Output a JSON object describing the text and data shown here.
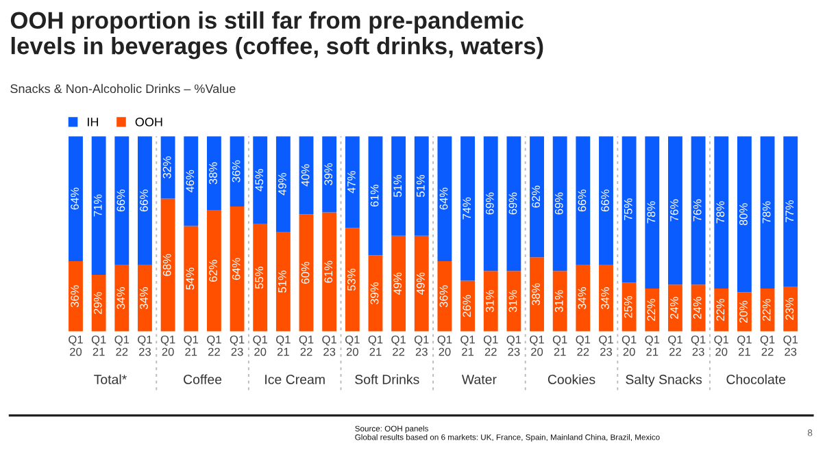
{
  "chart_data": {
    "type": "bar",
    "stacked": true,
    "legend": "top left",
    "grid": false,
    "tick_labels": "x",
    "title": "OOH proportion is still far from pre-pandemic\nlevels in beverages (coffee, soft drinks, waters)",
    "subtitle": "Snacks & Non-Alcoholic Drinks – %Value",
    "categories": [
      "Q1\n20",
      "Q1\n21",
      "Q1\n22",
      "Q1\n23",
      "Q1\n20",
      "Q1\n21",
      "Q1\n22",
      "Q1\n23",
      "Q1\n20",
      "Q1\n21",
      "Q1\n22",
      "Q1\n23",
      "Q1\n20",
      "Q1\n21",
      "Q1\n22",
      "Q1\n23",
      "Q1\n20",
      "Q1\n21",
      "Q1\n22",
      "Q1\n23",
      "Q1\n20",
      "Q1\n21",
      "Q1\n22",
      "Q1\n23",
      "Q1\n20",
      "Q1\n21",
      "Q1\n22",
      "Q1\n23",
      "Q1\n20",
      "Q1\n21",
      "Q1\n22",
      "Q1\n23"
    ],
    "series": [
      {
        "name": "OOH",
        "color": "#ff5000",
        "values": [
          36,
          29,
          34,
          34,
          68,
          54,
          62,
          64,
          55,
          51,
          60,
          61,
          53,
          39,
          49,
          49,
          36,
          26,
          31,
          31,
          38,
          31,
          34,
          34,
          25,
          22,
          24,
          24,
          22,
          20,
          22,
          23
        ],
        "value_labels": [
          "36%",
          "29%",
          "34%",
          "34%",
          "68%",
          "54%",
          "62%",
          "64%",
          "55%",
          "51%",
          "60%",
          "61%",
          "53%",
          "39%",
          "49%",
          "49%",
          "36%",
          "26%",
          "31%",
          "31%",
          "38%",
          "31%",
          "34%",
          "34%",
          "25%",
          "22%",
          "24%",
          "24%",
          "22%",
          "20%",
          "22%",
          "23%"
        ]
      },
      {
        "name": "IH",
        "color": "#0a5cff",
        "values": [
          64,
          71,
          66,
          66,
          32,
          46,
          38,
          36,
          45,
          49,
          40,
          39,
          47,
          61,
          51,
          51,
          64,
          74,
          69,
          69,
          62,
          69,
          66,
          66,
          75,
          78,
          76,
          76,
          78,
          80,
          78,
          77
        ],
        "value_labels": [
          "64%",
          "71%",
          "66%",
          "66%",
          "32%",
          "46%",
          "38%",
          "36%",
          "45%",
          "49%",
          "40%",
          "39%",
          "47%",
          "61%",
          "51%",
          "51%",
          "64%",
          "74%",
          "69%",
          "69%",
          "62%",
          "69%",
          "66%",
          "66%",
          "75%",
          "78%",
          "76%",
          "76%",
          "78%",
          "80%",
          "78%",
          "77%"
        ]
      }
    ],
    "annotations": [
      "Total*",
      "Coffee",
      "Ice Cream",
      "Soft Drinks",
      "Water",
      "Cookies",
      "Salty Snacks",
      "Chocolate",
      "Source: OOH panels\nGlobal results based on 6 markets: UK, France, Spain, Mainland China, Brazil, Mexico",
      "8"
    ]
  }
}
